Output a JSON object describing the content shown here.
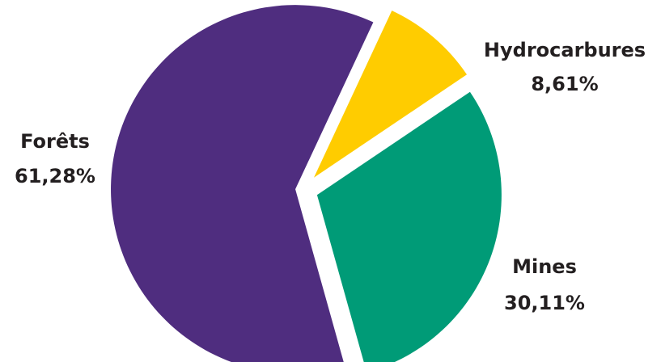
{
  "chart_data": {
    "type": "pie",
    "title": "",
    "slices": [
      {
        "label": "Hydrocarbures",
        "value": 8.61,
        "value_label": "8,61%",
        "color": "#ffcc00"
      },
      {
        "label": "Mines",
        "value": 30.11,
        "value_label": "30,11%",
        "color": "#009b77"
      },
      {
        "label": "Forêts",
        "value": 61.28,
        "value_label": "61,28%",
        "color": "#4f2d7f"
      }
    ],
    "start_angle_deg": 25,
    "direction": "clockwise",
    "exploded": true,
    "legend": "none"
  }
}
